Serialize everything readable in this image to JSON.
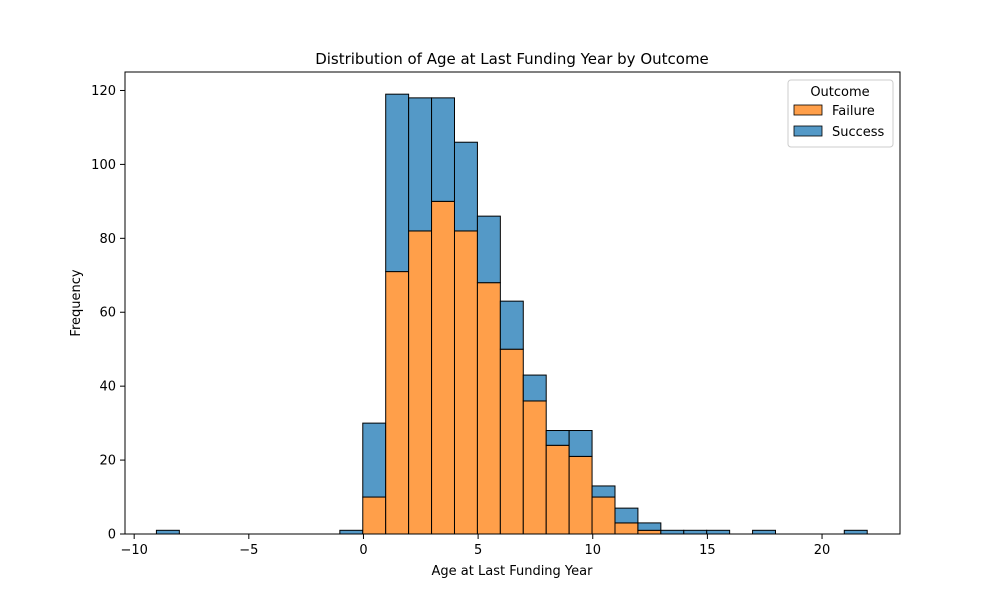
{
  "chart_data": {
    "type": "bar",
    "stacked": true,
    "title": "Distribution of Age at Last Funding Year by Outcome",
    "xlabel": "Age at Last Funding Year",
    "ylabel": "Frequency",
    "xlim": [
      -10.4,
      23.4
    ],
    "ylim": [
      0,
      125
    ],
    "xticks": [
      -10,
      -5,
      0,
      5,
      10,
      15,
      20
    ],
    "xtick_labels": [
      "−10",
      "−5",
      "0",
      "5",
      "10",
      "15",
      "20"
    ],
    "yticks": [
      0,
      20,
      40,
      60,
      80,
      100,
      120
    ],
    "ytick_labels": [
      "0",
      "20",
      "40",
      "60",
      "80",
      "100",
      "120"
    ],
    "bin_edges": [
      -9.03,
      -8.03,
      -7.03,
      -6.03,
      -5.03,
      -4.03,
      -3.03,
      -2.03,
      -1.03,
      -0.03,
      0.97,
      1.97,
      2.97,
      3.97,
      4.97,
      5.97,
      6.97,
      7.97,
      8.97,
      9.97,
      10.97,
      11.97,
      12.97,
      13.97,
      14.97,
      15.97,
      16.97,
      17.97,
      18.97,
      19.97,
      20.97,
      21.97
    ],
    "series": [
      {
        "name": "Failure",
        "color": "#ff9f4a",
        "values": [
          0,
          0,
          0,
          0,
          0,
          0,
          0,
          0,
          0,
          10,
          71,
          82,
          90,
          82,
          68,
          50,
          36,
          24,
          21,
          10,
          3,
          1,
          0,
          0,
          0,
          0,
          0,
          0,
          0,
          0,
          0
        ]
      },
      {
        "name": "Success",
        "color": "#5499c7",
        "values": [
          1,
          0,
          0,
          0,
          0,
          0,
          0,
          0,
          1,
          20,
          48,
          36,
          28,
          24,
          18,
          13,
          7,
          4,
          7,
          3,
          4,
          2,
          1,
          1,
          1,
          0,
          1,
          0,
          0,
          0,
          1
        ]
      }
    ],
    "legend": {
      "title": "Outcome",
      "position": "top-right",
      "entries": [
        "Failure",
        "Success"
      ]
    },
    "grid": false
  }
}
